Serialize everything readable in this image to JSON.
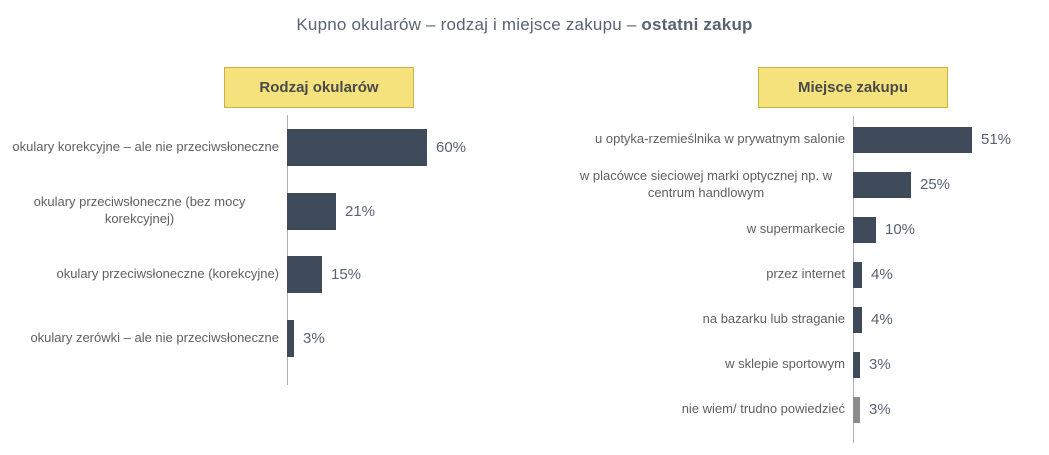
{
  "title": {
    "prefix": "Kupno okularów – rodzaj i miejsce zakupu – ",
    "emphasis": "ostatni zakup"
  },
  "colors": {
    "bar": "#3f4a5a",
    "bar_alt": "#8c8c8c",
    "header_bg": "#f5e27d",
    "header_border": "#c9b245",
    "label_text": "#5f5f5f",
    "value_text": "#596273",
    "axis": "#b0b0b0"
  },
  "chart_data": [
    {
      "type": "bar",
      "orientation": "horizontal",
      "title": "Rodzaj okularów",
      "categories": [
        "okulary korekcyjne – ale nie przeciwsłoneczne",
        "okulary przeciwsłoneczne (bez mocy korekcyjnej)",
        "okulary przeciwsłoneczne (korekcyjne)",
        "okulary zerówki – ale nie przeciwsłoneczne"
      ],
      "values": [
        60,
        21,
        15,
        3
      ],
      "value_suffix": "%",
      "bar_color_keys": [
        "bar",
        "bar",
        "bar",
        "bar"
      ],
      "value_axis_max": 60,
      "grid": false,
      "value_labels_shown": true
    },
    {
      "type": "bar",
      "orientation": "horizontal",
      "title": "Miejsce zakupu",
      "categories": [
        "u optyka-rzemieślnika w prywatnym salonie",
        "w placówce sieciowej marki optycznej np. w centrum handlowym",
        "w supermarkecie",
        "przez internet",
        "na bazarku lub straganie",
        "w sklepie sportowym",
        "nie wiem/ trudno powiedzieć"
      ],
      "values": [
        51,
        25,
        10,
        4,
        4,
        3,
        3
      ],
      "value_suffix": "%",
      "bar_color_keys": [
        "bar",
        "bar",
        "bar",
        "bar",
        "bar",
        "bar",
        "bar_alt"
      ],
      "value_axis_max": 51,
      "grid": false,
      "value_labels_shown": true
    }
  ]
}
